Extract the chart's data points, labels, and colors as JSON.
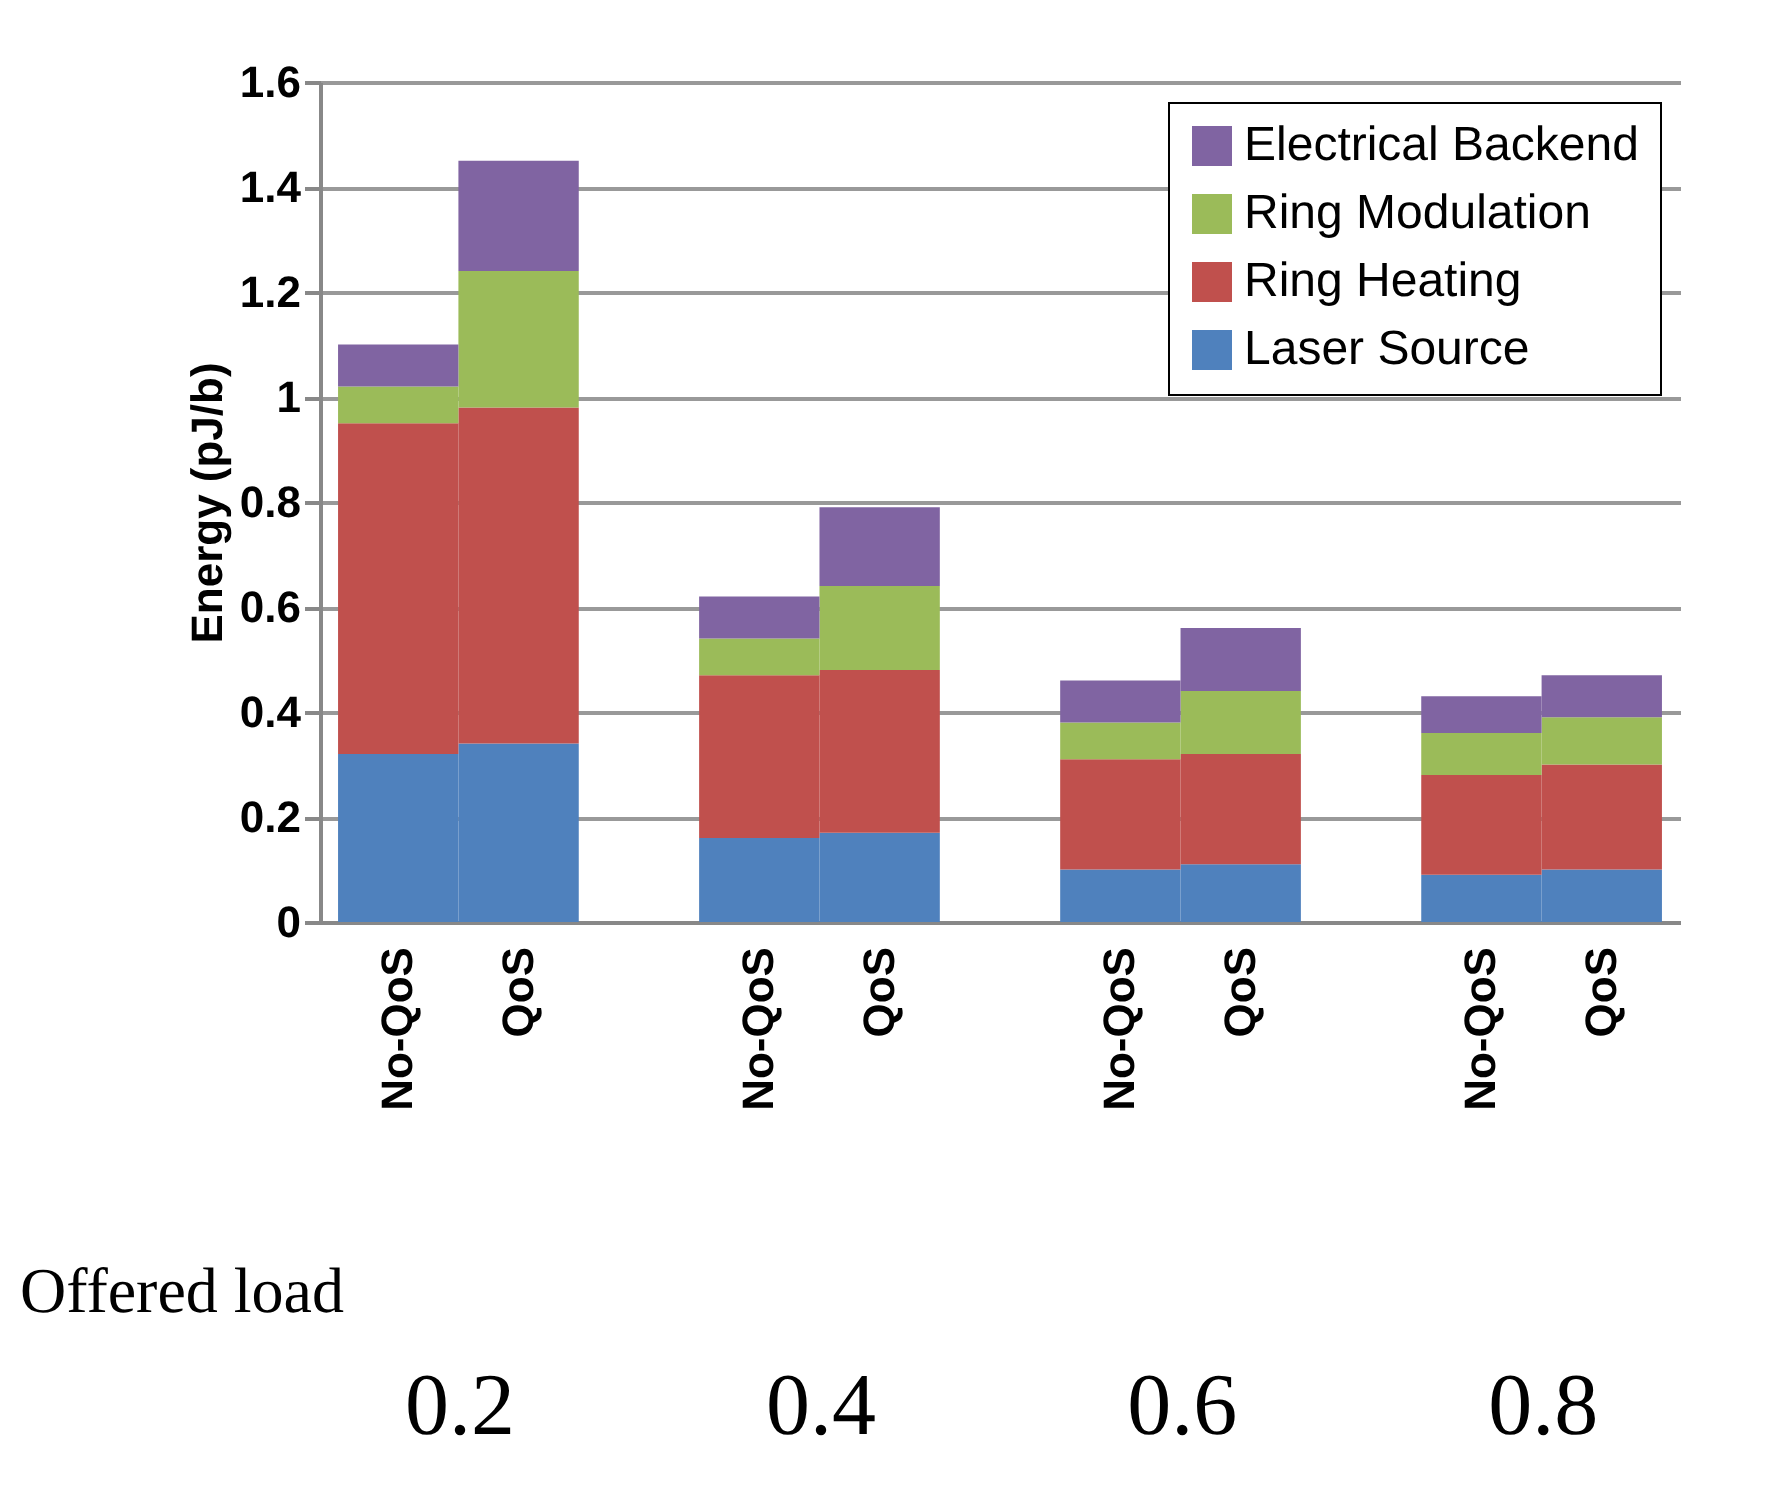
{
  "chart_data": {
    "type": "bar",
    "stacked": true,
    "ylabel": "Energy (pJ/b)",
    "xlabel": "Offered load",
    "categories": [
      "No-QoS",
      "QoS",
      "No-QoS",
      "QoS",
      "No-QoS",
      "QoS",
      "No-QoS",
      "QoS"
    ],
    "annotations": [
      "0.2",
      "0.4",
      "0.6",
      "0.8"
    ],
    "series": [
      {
        "name": "Laser Source",
        "color": "#4f81bd",
        "values": [
          0.32,
          0.34,
          0.16,
          0.17,
          0.1,
          0.11,
          0.09,
          0.1
        ]
      },
      {
        "name": "Ring Heating",
        "color": "#c0504d",
        "values": [
          0.63,
          0.64,
          0.31,
          0.31,
          0.21,
          0.21,
          0.19,
          0.2
        ]
      },
      {
        "name": "Ring Modulation",
        "color": "#9bbb59",
        "values": [
          0.07,
          0.26,
          0.07,
          0.16,
          0.07,
          0.12,
          0.08,
          0.09
        ]
      },
      {
        "name": "Electrical Backend",
        "color": "#8064a2",
        "values": [
          0.08,
          0.21,
          0.08,
          0.15,
          0.08,
          0.12,
          0.07,
          0.08
        ]
      }
    ],
    "ylim": [
      0,
      1.6
    ],
    "yticks": [
      0,
      0.2,
      0.4,
      0.6,
      0.8,
      1,
      1.2,
      1.4,
      1.6
    ],
    "grid": "y",
    "legend": "top right"
  }
}
